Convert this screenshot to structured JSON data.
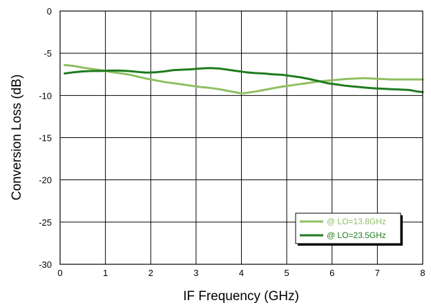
{
  "chart_data": {
    "type": "line",
    "title": "",
    "xlabel": "IF Frequency (GHz)",
    "ylabel": "Conversion Loss (dB)",
    "xlim": [
      0,
      8
    ],
    "ylim": [
      -30,
      0
    ],
    "xticks": [
      0,
      1,
      2,
      3,
      4,
      5,
      6,
      7,
      8
    ],
    "yticks": [
      0,
      -5,
      -10,
      -15,
      -20,
      -25,
      -30
    ],
    "grid": true,
    "legend_position": "bottom-right",
    "series": [
      {
        "name": "@ LO=13.8GHz",
        "color": "#8fbf60",
        "x": [
          0.1,
          0.3,
          0.5,
          0.7,
          0.9,
          1.1,
          1.3,
          1.5,
          1.7,
          1.9,
          2.1,
          2.3,
          2.5,
          2.7,
          2.9,
          3.1,
          3.3,
          3.5,
          3.7,
          3.9,
          4.0,
          4.1,
          4.3,
          4.5,
          4.7,
          4.9,
          5.1,
          5.3,
          5.5,
          5.7,
          5.9,
          6.1,
          6.3,
          6.5,
          6.7,
          6.9,
          7.1,
          7.3,
          7.5,
          7.7,
          8.0
        ],
        "y": [
          -6.4,
          -6.5,
          -6.7,
          -6.85,
          -7.0,
          -7.2,
          -7.35,
          -7.5,
          -7.75,
          -8.0,
          -8.2,
          -8.4,
          -8.55,
          -8.7,
          -8.85,
          -9.0,
          -9.1,
          -9.25,
          -9.45,
          -9.65,
          -9.75,
          -9.7,
          -9.55,
          -9.35,
          -9.15,
          -8.95,
          -8.8,
          -8.65,
          -8.5,
          -8.35,
          -8.25,
          -8.15,
          -8.05,
          -8.0,
          -7.95,
          -8.0,
          -8.05,
          -8.1,
          -8.1,
          -8.1,
          -8.1
        ]
      },
      {
        "name": "@ LO=23.5GHz",
        "color": "#1e7a1e",
        "x": [
          0.1,
          0.3,
          0.5,
          0.7,
          0.9,
          1.1,
          1.3,
          1.5,
          1.7,
          1.9,
          2.1,
          2.3,
          2.5,
          2.7,
          2.9,
          3.1,
          3.3,
          3.5,
          3.7,
          3.9,
          4.1,
          4.3,
          4.5,
          4.7,
          4.9,
          5.1,
          5.3,
          5.5,
          5.7,
          5.9,
          6.1,
          6.3,
          6.5,
          6.7,
          6.9,
          7.1,
          7.3,
          7.5,
          7.7,
          7.9,
          8.0
        ],
        "y": [
          -7.4,
          -7.25,
          -7.15,
          -7.1,
          -7.1,
          -7.05,
          -7.05,
          -7.1,
          -7.2,
          -7.3,
          -7.25,
          -7.15,
          -7.0,
          -6.95,
          -6.9,
          -6.8,
          -6.75,
          -6.8,
          -6.95,
          -7.1,
          -7.25,
          -7.35,
          -7.4,
          -7.5,
          -7.55,
          -7.7,
          -7.85,
          -8.05,
          -8.3,
          -8.55,
          -8.7,
          -8.85,
          -8.95,
          -9.05,
          -9.15,
          -9.2,
          -9.25,
          -9.3,
          -9.35,
          -9.55,
          -9.6
        ]
      }
    ]
  }
}
